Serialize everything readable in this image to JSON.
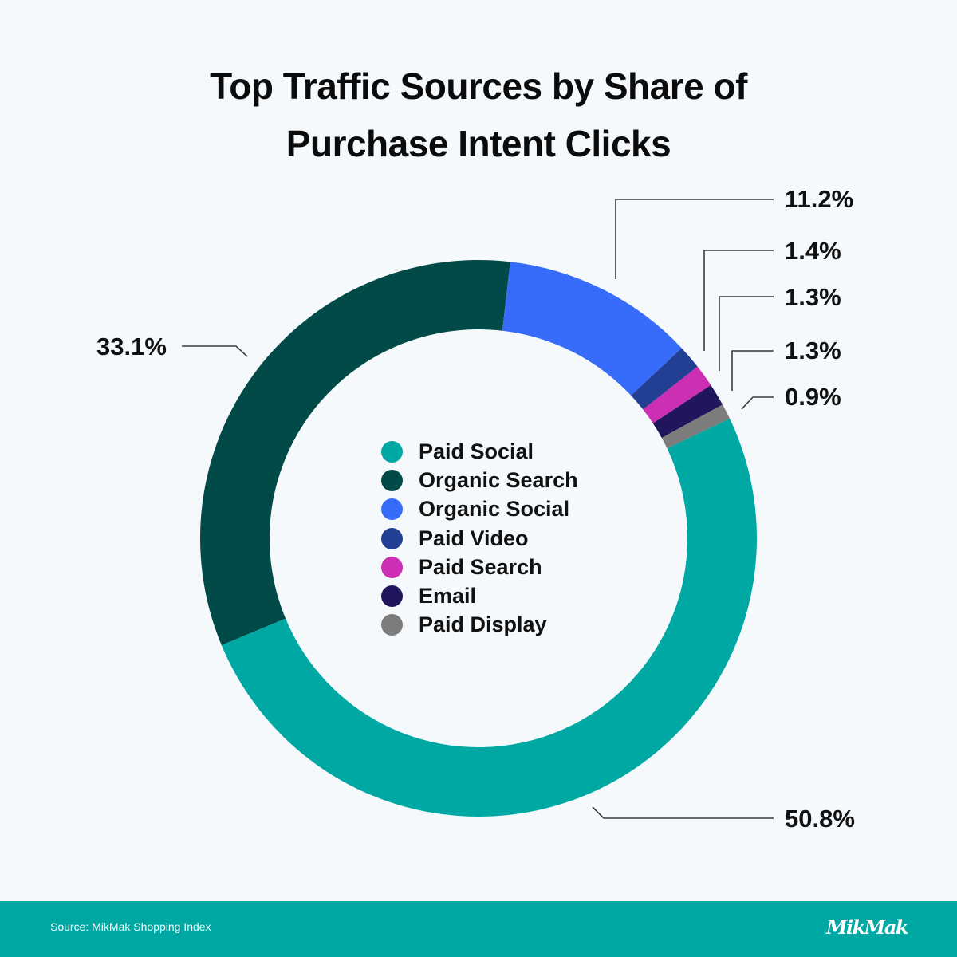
{
  "title": {
    "line1": "Top Traffic Sources by Share of",
    "line2": "Purchase Intent Clicks"
  },
  "legend": [
    {
      "label": "Paid Social",
      "color": "#00a8a3"
    },
    {
      "label": "Organic Search",
      "color": "#024a47"
    },
    {
      "label": "Organic Social",
      "color": "#376cfb"
    },
    {
      "label": "Paid Video",
      "color": "#223f93"
    },
    {
      "label": "Paid Search",
      "color": "#cc2fb3"
    },
    {
      "label": "Email",
      "color": "#21165d"
    },
    {
      "label": "Paid Display",
      "color": "#7c7c7c"
    }
  ],
  "labels": {
    "paid_social": "50.8%",
    "organic_search": "33.1%",
    "organic_social": "11.2%",
    "paid_video": "1.4%",
    "paid_search": "1.3%",
    "email": "1.3%",
    "paid_display": "0.9%"
  },
  "footer": {
    "source": "Source: MikMak Shopping Index",
    "logo": "MikMak"
  },
  "chart_data": {
    "type": "pie",
    "subtype": "donut",
    "title": "Top Traffic Sources by Share of Purchase Intent Clicks",
    "categories": [
      "Paid Social",
      "Organic Search",
      "Organic Social",
      "Paid Video",
      "Paid Search",
      "Email",
      "Paid Display"
    ],
    "values": [
      50.8,
      33.1,
      11.2,
      1.4,
      1.3,
      1.3,
      0.9
    ],
    "unit": "%",
    "colors": [
      "#00a8a3",
      "#024a47",
      "#376cfb",
      "#223f93",
      "#cc2fb3",
      "#21165d",
      "#7c7c7c"
    ],
    "legend_position": "center",
    "data_labels": [
      "50.8%",
      "33.1%",
      "11.2%",
      "1.4%",
      "1.3%",
      "1.3%",
      "0.9%"
    ],
    "source": "MikMak Shopping Index"
  }
}
